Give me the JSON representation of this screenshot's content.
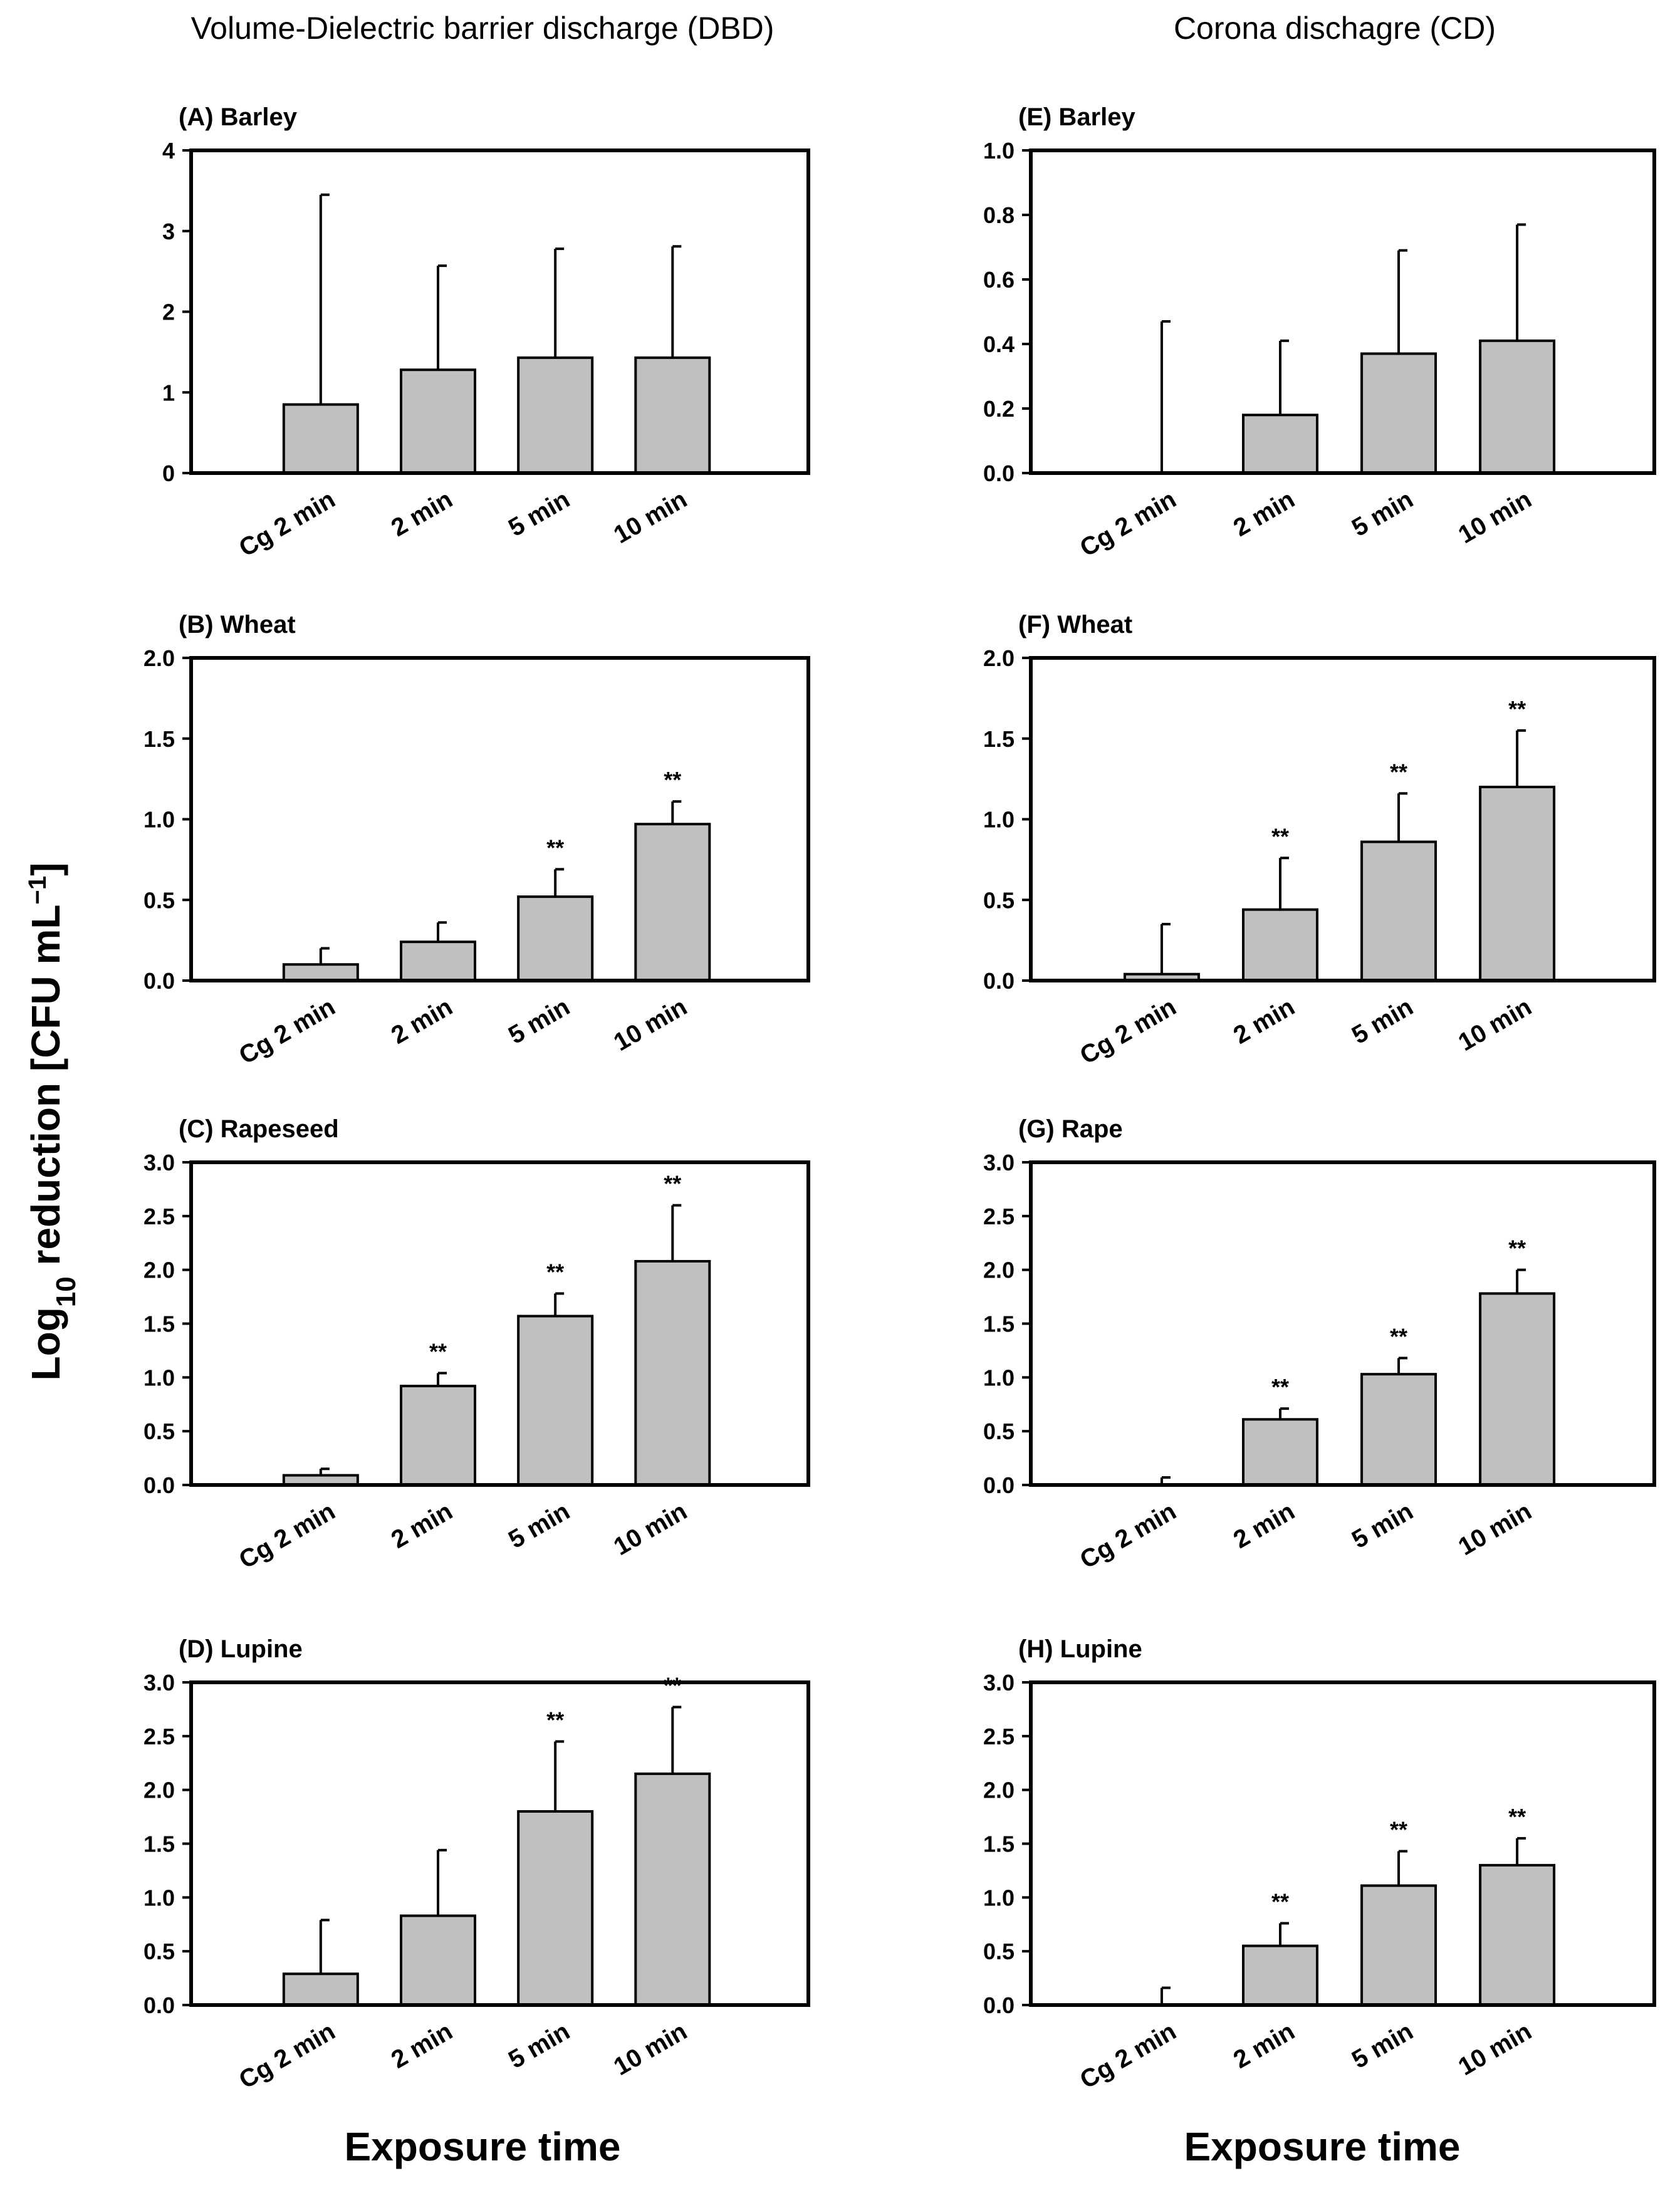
{
  "chart_data": {
    "column_titles": [
      "Volume-Dielectric barrier discharge (DBD)",
      "Corona dischagre (CD)"
    ],
    "ylabel": "Log10 reduction [CFU mL−1]",
    "ylabel_parts": {
      "pre": "Log",
      "sub": "10",
      "mid": " reduction [CFU mL",
      "sup": "−1",
      "post": "]"
    },
    "xlabel": "Exposure time",
    "panels": [
      {
        "title": "(A) Barley",
        "type": "bar",
        "categories": [
          "Cg 2 min",
          "2 min",
          "5 min",
          "10 min"
        ],
        "values": [
          0.85,
          1.28,
          1.43,
          1.43
        ],
        "errors": [
          2.6,
          1.29,
          1.35,
          1.38
        ],
        "significance": [
          "",
          "",
          "",
          ""
        ],
        "ylim": [
          0,
          4
        ],
        "yticks": [
          "0",
          "1",
          "2",
          "3",
          "4"
        ]
      },
      {
        "title": "(B) Wheat",
        "type": "bar",
        "categories": [
          "Cg 2 min",
          "2 min",
          "5 min",
          "10 min"
        ],
        "values": [
          0.1,
          0.24,
          0.52,
          0.97
        ],
        "errors": [
          0.1,
          0.12,
          0.17,
          0.14
        ],
        "significance": [
          "",
          "",
          "**",
          "**"
        ],
        "ylim": [
          0,
          2
        ],
        "yticks": [
          "0.0",
          "0.5",
          "1.0",
          "1.5",
          "2.0"
        ]
      },
      {
        "title": "(C) Rapeseed",
        "type": "bar",
        "categories": [
          "Cg 2 min",
          "2 min",
          "5 min",
          "10 min"
        ],
        "values": [
          0.09,
          0.92,
          1.57,
          2.08
        ],
        "errors": [
          0.06,
          0.12,
          0.21,
          0.52
        ],
        "significance": [
          "",
          "**",
          "**",
          "**"
        ],
        "ylim": [
          0,
          3
        ],
        "yticks": [
          "0.0",
          "0.5",
          "1.0",
          "1.5",
          "2.0",
          "2.5",
          "3.0"
        ]
      },
      {
        "title": "(D) Lupine",
        "type": "bar",
        "categories": [
          "Cg 2 min",
          "2 min",
          "5 min",
          "10 min"
        ],
        "values": [
          0.29,
          0.83,
          1.8,
          2.15
        ],
        "errors": [
          0.5,
          0.61,
          0.65,
          0.62
        ],
        "significance": [
          "",
          "",
          "**",
          "**"
        ],
        "ylim": [
          0,
          3
        ],
        "yticks": [
          "0.0",
          "0.5",
          "1.0",
          "1.5",
          "2.0",
          "2.5",
          "3.0"
        ]
      },
      {
        "title": "(E) Barley",
        "type": "bar",
        "categories": [
          "Cg 2 min",
          "2 min",
          "5 min",
          "10 min"
        ],
        "values": [
          0,
          0.18,
          0.37,
          0.41
        ],
        "errors": [
          0.47,
          0.23,
          0.32,
          0.36
        ],
        "significance": [
          "",
          "",
          "",
          ""
        ],
        "ylim": [
          0,
          1
        ],
        "yticks": [
          "0.0",
          "0.2",
          "0.4",
          "0.6",
          "0.8",
          "1.0"
        ]
      },
      {
        "title": "(F) Wheat",
        "type": "bar",
        "categories": [
          "Cg 2 min",
          "2 min",
          "5 min",
          "10 min"
        ],
        "values": [
          0.04,
          0.44,
          0.86,
          1.2
        ],
        "errors": [
          0.31,
          0.32,
          0.3,
          0.35
        ],
        "significance": [
          "",
          "**",
          "**",
          "**"
        ],
        "ylim": [
          0,
          2
        ],
        "yticks": [
          "0.0",
          "0.5",
          "1.0",
          "1.5",
          "2.0"
        ]
      },
      {
        "title": "(G) Rape",
        "type": "bar",
        "categories": [
          "Cg 2 min",
          "2 min",
          "5 min",
          "10 min"
        ],
        "values": [
          0,
          0.61,
          1.03,
          1.78
        ],
        "errors": [
          0.07,
          0.1,
          0.15,
          0.22
        ],
        "significance": [
          "",
          "**",
          "**",
          "**"
        ],
        "ylim": [
          0,
          3
        ],
        "yticks": [
          "0.0",
          "0.5",
          "1.0",
          "1.5",
          "2.0",
          "2.5",
          "3.0"
        ]
      },
      {
        "title": "(H) Lupine",
        "type": "bar",
        "categories": [
          "Cg 2 min",
          "2 min",
          "5 min",
          "10 min"
        ],
        "values": [
          0,
          0.55,
          1.11,
          1.3
        ],
        "errors": [
          0.16,
          0.21,
          0.32,
          0.25
        ],
        "significance": [
          "",
          "**",
          "**",
          "**"
        ],
        "ylim": [
          0,
          3
        ],
        "yticks": [
          "0.0",
          "0.5",
          "1.0",
          "1.5",
          "2.0",
          "2.5",
          "3.0"
        ]
      }
    ]
  }
}
